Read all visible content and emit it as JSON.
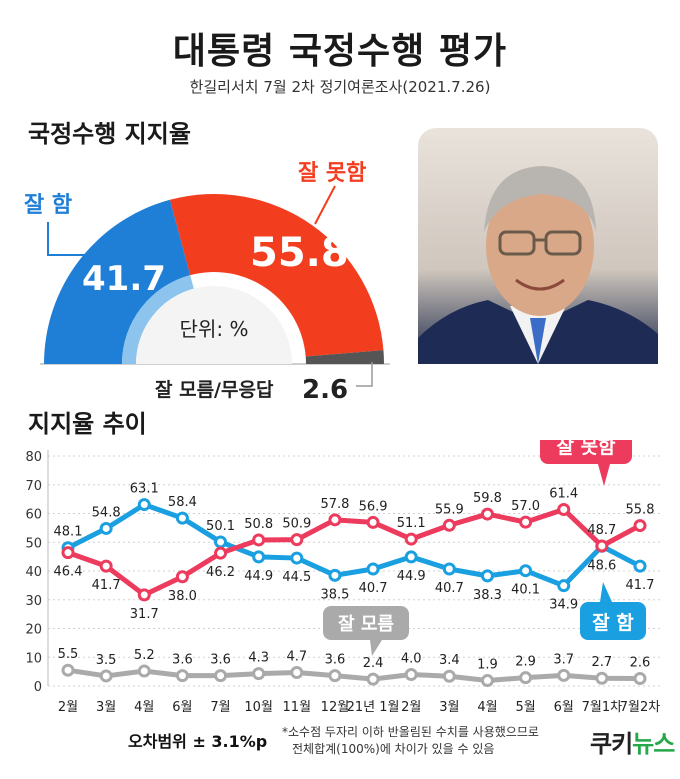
{
  "header": {
    "title": "대통령 국정수행 평가",
    "subtitle": "한길리서치 7월 2차 정기여론조사(2021.7.26)"
  },
  "gauge": {
    "section_title": "국정수행 지지율",
    "good_label": "잘 함",
    "good_value": 41.7,
    "good_value_text": "41.7",
    "bad_label": "잘 못함",
    "bad_value": 55.8,
    "bad_value_text": "55.8",
    "unknown_label": "잘 모름/무응답",
    "unknown_value": 2.6,
    "unknown_value_text": "2.6",
    "unit_label": "단위: %"
  },
  "trend": {
    "section_title": "지지율 추이",
    "bad_label": "잘 못함",
    "good_label": "잘 함",
    "unknown_label": "잘 모름"
  },
  "footer": {
    "margin_of_error": "오차범위 ± 3.1%p",
    "note_line1": "*소수점 두자리 이하 반올림된 수치를 사용했으므로",
    "note_line2": "전체합계(100%)에 차이가 있을 수 있음",
    "logo_part1": "쿠키",
    "logo_part2": "뉴스"
  },
  "colors": {
    "good": "#1a9fe0",
    "bad": "#ec3b5d",
    "unknown": "#aaaaaa",
    "gauge_good": "#1f7fd6",
    "gauge_bad": "#f23d1f",
    "gauge_unknown": "#555555"
  },
  "chart_data": {
    "type": "line",
    "categories": [
      "2월",
      "3월",
      "4월",
      "6월",
      "7월",
      "10월",
      "11월",
      "12월",
      "21년 1월",
      "2월",
      "3월",
      "4월",
      "5월",
      "6월",
      "7월1차",
      "7월2차"
    ],
    "ylim": [
      0,
      80
    ],
    "yticks": [
      0,
      10,
      20,
      30,
      40,
      50,
      60,
      70,
      80
    ],
    "grid": true,
    "series": [
      {
        "name": "잘 함",
        "color": "#1a9fe0",
        "values": [
          48.1,
          54.8,
          63.1,
          58.4,
          50.1,
          44.9,
          44.5,
          38.5,
          40.7,
          44.9,
          40.7,
          38.3,
          40.1,
          34.9,
          48.6,
          41.7
        ]
      },
      {
        "name": "잘 못함",
        "color": "#ec3b5d",
        "values": [
          46.4,
          41.7,
          31.7,
          38.0,
          46.2,
          50.8,
          50.9,
          57.8,
          56.9,
          51.1,
          55.9,
          59.8,
          57.0,
          61.4,
          48.7,
          55.8
        ]
      },
      {
        "name": "잘 모름",
        "color": "#aaaaaa",
        "values": [
          5.5,
          3.5,
          5.2,
          3.6,
          3.6,
          4.3,
          4.7,
          3.6,
          2.4,
          4.0,
          3.4,
          1.9,
          2.9,
          3.7,
          2.7,
          2.6
        ]
      }
    ]
  }
}
